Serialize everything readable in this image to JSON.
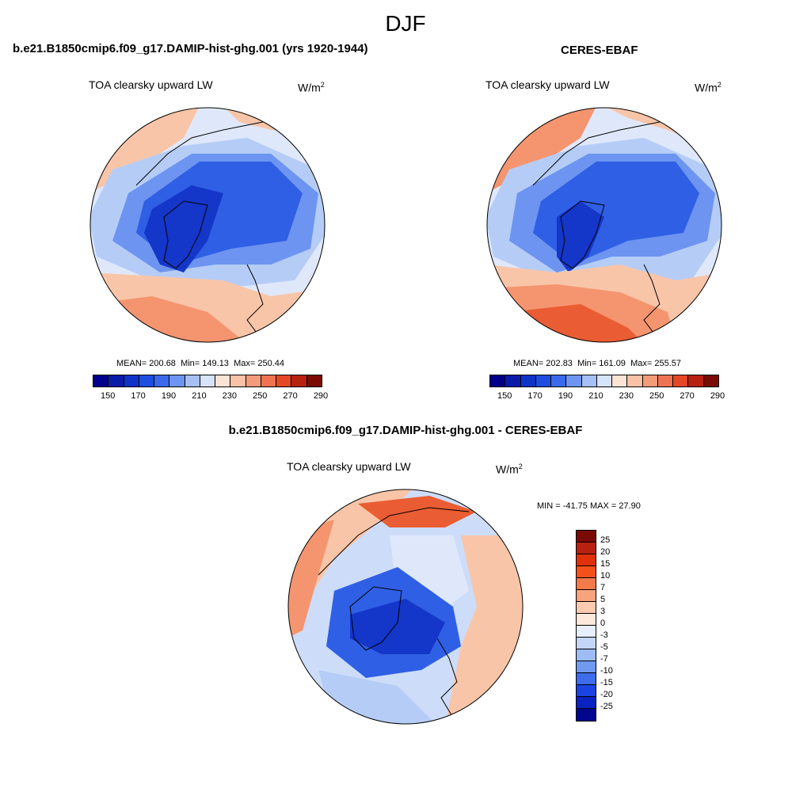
{
  "season": "DJF",
  "panels": {
    "model": {
      "title": "b.e21.B1850cmip6.f09_g17.DAMIP-hist-ghg.001 (yrs 1920-1944)",
      "variable": "TOA clearsky upward LW",
      "units_base": "W/m",
      "units_exp": "2",
      "mean_label": "MEAN=",
      "mean": "200.68",
      "min_label": "Min=",
      "min": "149.13",
      "max_label": "Max=",
      "max": "250.44"
    },
    "obs": {
      "title": "CERES-EBAF",
      "variable": "TOA clearsky upward LW",
      "units_base": "W/m",
      "units_exp": "2",
      "mean_label": "MEAN=",
      "mean": "202.83",
      "min_label": "Min=",
      "min": "161.09",
      "max_label": "Max=",
      "max": "255.57"
    },
    "diff": {
      "title": "b.e21.B1850cmip6.f09_g17.DAMIP-hist-ghg.001 - CERES-EBAF",
      "variable": "TOA clearsky upward LW",
      "units_base": "W/m",
      "units_exp": "2",
      "minmax_text": "MIN = -41.75 MAX =  27.90"
    }
  },
  "abs_colorbar": {
    "colors": [
      "#00008a",
      "#0a1ba8",
      "#0f33c7",
      "#1e4ee0",
      "#3a6aeb",
      "#6d94f0",
      "#a6c0f5",
      "#d6e3fa",
      "#fce4d4",
      "#f9c2a6",
      "#f49c7a",
      "#ef7350",
      "#e44825",
      "#b8210f",
      "#7a0a04"
    ],
    "labels": [
      "150",
      "170",
      "190",
      "210",
      "230",
      "250",
      "270",
      "290"
    ]
  },
  "diff_colorbar": {
    "colors": [
      "#7a0a04",
      "#b8210f",
      "#e0300c",
      "#f5501a",
      "#f47a4a",
      "#f7a47c",
      "#fbcbb0",
      "#fde9dc",
      "#e6effb",
      "#c3d6f7",
      "#9dbcf4",
      "#6f9af0",
      "#3d6deb",
      "#1a45e2",
      "#0a22c2",
      "#00058e"
    ],
    "labels": [
      "25",
      "20",
      "15",
      "10",
      "7",
      "5",
      "3",
      "0",
      "-3",
      "-5",
      "-7",
      "-10",
      "-15",
      "-20",
      "-25"
    ]
  },
  "map_colors": {
    "cold_core": "#1436c9",
    "cold_mid": "#2f5fe4",
    "cool": "#6d94f0",
    "light_blue": "#b5cdf6",
    "pale": "#dfe8fb",
    "warm_light": "#f9c5a8",
    "warm": "#f49570",
    "warm_strong": "#ea5c33",
    "diff_base": "#cddcf8"
  }
}
